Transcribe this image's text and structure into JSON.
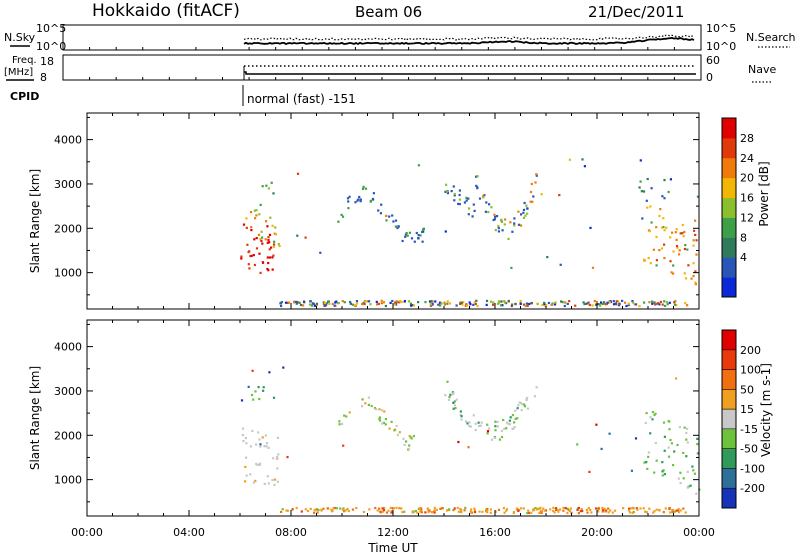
{
  "header": {
    "station": "Hokkaido (fitACF)",
    "beam": "Beam 06",
    "date": "21/Dec/2011"
  },
  "status_panels": {
    "nsky_label": "N.Sky",
    "nsky_ticks": [
      "10^5",
      "10^0"
    ],
    "nsearch_label": "N.Search",
    "nsearch_ticks": [
      "10^5",
      "10^0"
    ],
    "freq_label": "Freq.",
    "freq_unit": "[MHz]",
    "freq_ticks": [
      "18",
      "8"
    ],
    "nave_label": "Nave",
    "nave_ticks": [
      "60",
      "0"
    ],
    "cpid_label": "CPID",
    "cpid_text": "normal (fast) -151"
  },
  "chart_data": [
    {
      "type": "heatmap",
      "name": "power",
      "ylabel": "Slant Range [km]",
      "xlabel": "",
      "y_ticks": [
        "4000",
        "3000",
        "2000",
        "1000"
      ],
      "ylim": [
        180,
        4600
      ],
      "xlim": [
        0,
        24
      ],
      "colorbar": {
        "label": "Power [dB]",
        "ticks": [
          "28",
          "24",
          "20",
          "16",
          "12",
          "8",
          "4"
        ],
        "colors": [
          "#0a28d8",
          "#2a55b8",
          "#2e7a5a",
          "#3f9f48",
          "#8cbf2e",
          "#f2b705",
          "#f07a0a",
          "#e03a0a",
          "#e00000"
        ]
      }
    },
    {
      "type": "heatmap",
      "name": "velocity",
      "ylabel": "Slant Range [km]",
      "xlabel": "Time UT",
      "y_ticks": [
        "4000",
        "3000",
        "2000",
        "1000"
      ],
      "ylim": [
        180,
        4600
      ],
      "xlim": [
        0,
        24
      ],
      "colorbar": {
        "label": "Velocity [m s-1]",
        "ticks": [
          "200",
          "100",
          "50",
          "15",
          "-15",
          "-50",
          "-100",
          "-200"
        ],
        "colors": [
          "#1533b8",
          "#2e6f9a",
          "#2f9a5a",
          "#6cc23a",
          "#c8c8c8",
          "#f0a020",
          "#f07010",
          "#e83a0a",
          "#e00000"
        ]
      }
    }
  ],
  "x_ticks": [
    "00:00",
    "04:00",
    "08:00",
    "12:00",
    "16:00",
    "20:00",
    "00:00"
  ],
  "x_label": "Time UT"
}
